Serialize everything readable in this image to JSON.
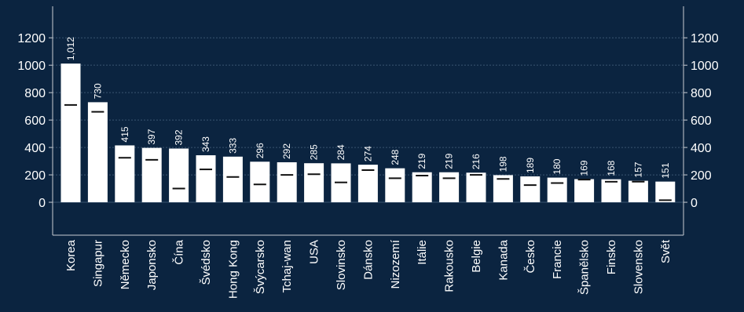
{
  "chart_data": {
    "type": "bar",
    "categories": [
      "Korea",
      "Singapur",
      "Německo",
      "Japonsko",
      "Čína",
      "Švédsko",
      "Hong Kong",
      "Švýcarsko",
      "Tchaj-wan",
      "USA",
      "Slovinsko",
      "Dánsko",
      "Nizozemí",
      "Itálie",
      "Rakousko",
      "Belgie",
      "Kanada",
      "Česko",
      "Francie",
      "Španělsko",
      "Finsko",
      "Slovensko",
      "Svět"
    ],
    "series": [
      {
        "values": [
          1012,
          730,
          415,
          397,
          392,
          343,
          333,
          296,
          292,
          285,
          284,
          274,
          248,
          219,
          219,
          216,
          198,
          189,
          180,
          169,
          168,
          157,
          151
        ],
        "data_labels": [
          "1,012",
          "730",
          "415",
          "397",
          "392",
          "343",
          "333",
          "296",
          "292",
          "285",
          "284",
          "274",
          "248",
          "219",
          "219",
          "216",
          "198",
          "189",
          "180",
          "169",
          "168",
          "157",
          "151"
        ]
      },
      {
        "type": "marker",
        "values": [
          710,
          660,
          325,
          310,
          100,
          240,
          185,
          130,
          200,
          205,
          145,
          235,
          175,
          195,
          175,
          200,
          170,
          125,
          140,
          165,
          150,
          150,
          15
        ]
      }
    ],
    "y_ticks": [
      "0",
      "200",
      "400",
      "600",
      "800",
      "1000",
      "1200"
    ],
    "ylim": [
      -240,
      1430
    ],
    "grid": true,
    "legend": "none",
    "colors": {
      "background": "#0b2440",
      "bar": "#ffffff",
      "marker": "#111111",
      "axis": "#c8ccd2",
      "grid": "#3a5470"
    }
  }
}
